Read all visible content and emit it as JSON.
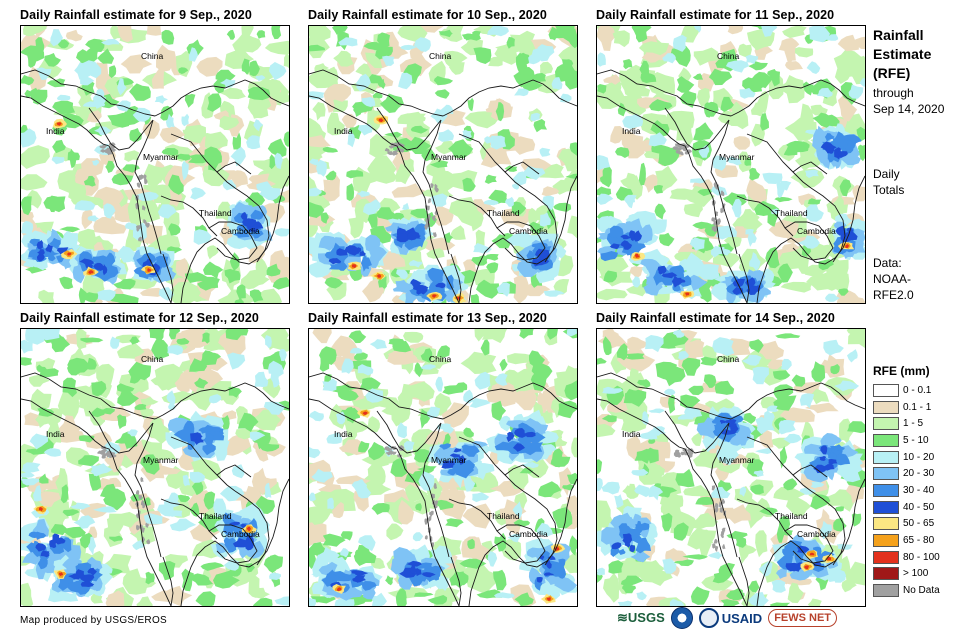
{
  "panels": [
    {
      "title": "Daily Rainfall estimate for 9 Sep., 2020",
      "labels": {
        "china": "China",
        "india": "India",
        "myanmar": "Myanmar",
        "thailand": "Thailand",
        "cambodia": "Cambodia"
      }
    },
    {
      "title": "Daily Rainfall estimate for 10 Sep., 2020",
      "labels": {
        "china": "China",
        "india": "India",
        "myanmar": "Myanmar",
        "thailand": "Thailand",
        "cambodia": "Cambodia"
      }
    },
    {
      "title": "Daily Rainfall estimate for 11 Sep., 2020",
      "labels": {
        "china": "China",
        "india": "India",
        "myanmar": "Myanmar",
        "thailand": "Thailand",
        "cambodia": "Cambodia"
      }
    },
    {
      "title": "Daily Rainfall estimate for 12 Sep., 2020",
      "labels": {
        "china": "China",
        "india": "India",
        "myanmar": "Myanmar",
        "thailand": "Thailand",
        "cambodia": "Cambodia"
      }
    },
    {
      "title": "Daily Rainfall estimate for 13 Sep., 2020",
      "labels": {
        "china": "China",
        "india": "India",
        "myanmar": "Myanmar",
        "thailand": "Thailand",
        "cambodia": "Cambodia"
      }
    },
    {
      "title": "Daily Rainfall estimate for 14 Sep., 2020",
      "labels": {
        "china": "China",
        "india": "India",
        "myanmar": "Myanmar",
        "thailand": "Thailand",
        "cambodia": "Cambodia"
      }
    }
  ],
  "sidebar": {
    "title_line1": "Rainfall",
    "title_line2": "Estimate",
    "title_line3": "(RFE)",
    "through_line1": "through",
    "through_line2": "Sep 14, 2020",
    "totals_line1": "Daily",
    "totals_line2": "Totals",
    "data_line1": "Data:",
    "data_line2": "NOAA-",
    "data_line3": "RFE2.0"
  },
  "legend": {
    "title": "RFE (mm)",
    "items": [
      {
        "label": "0 - 0.1",
        "color": "#ffffff"
      },
      {
        "label": "0.1 - 1",
        "color": "#ecdcbf"
      },
      {
        "label": "1 - 5",
        "color": "#c4f5b0"
      },
      {
        "label": "5 - 10",
        "color": "#7be67a"
      },
      {
        "label": "10 - 20",
        "color": "#b8f0f5"
      },
      {
        "label": "20 - 30",
        "color": "#7fc3f5"
      },
      {
        "label": "30 - 40",
        "color": "#3f8fe8"
      },
      {
        "label": "40 - 50",
        "color": "#1f4fd6"
      },
      {
        "label": "50 - 65",
        "color": "#fbe783"
      },
      {
        "label": "65 - 80",
        "color": "#f5a11b"
      },
      {
        "label": "80 - 100",
        "color": "#e3311d"
      },
      {
        "label": "> 100",
        "color": "#a01818"
      },
      {
        "label": "No Data",
        "color": "#a0a0a0"
      }
    ]
  },
  "footer": {
    "credit": "Map produced by USGS/EROS",
    "logo_usgs": "≋USGS",
    "logo_usaid": "USAID",
    "logo_fews": "FEWS NET"
  }
}
